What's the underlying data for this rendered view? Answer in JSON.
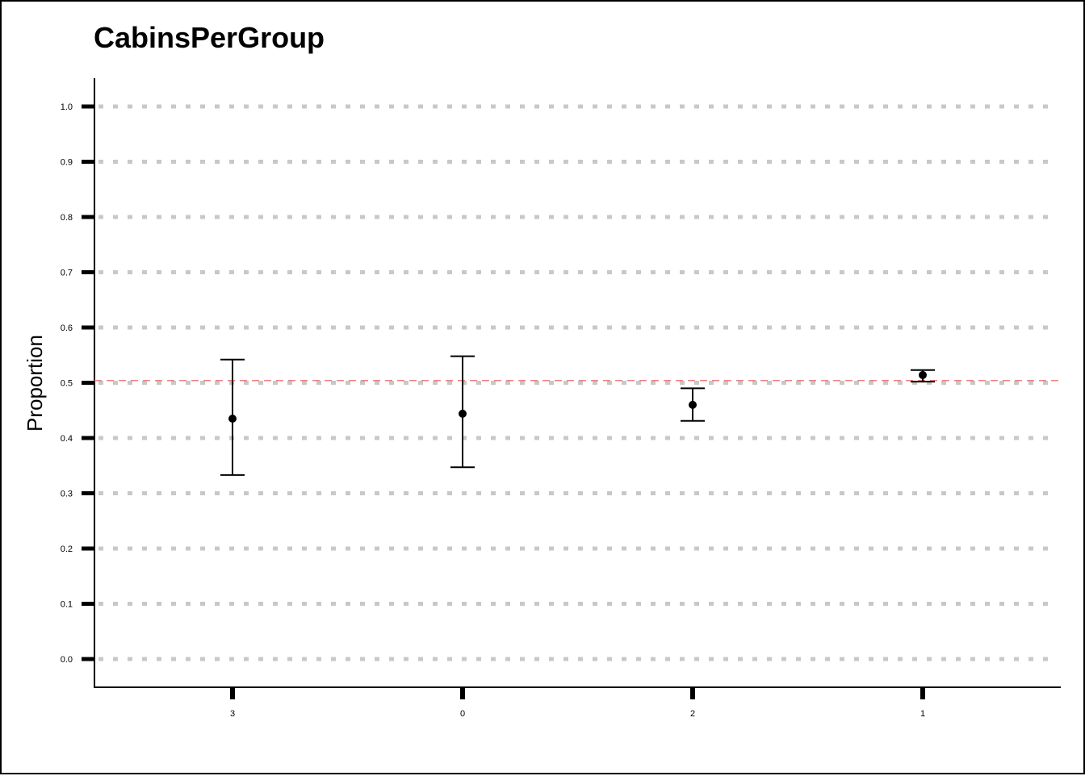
{
  "chart_data": {
    "type": "errorbar",
    "title": "CabinsPerGroup",
    "xlabel": "",
    "ylabel": "Proportion",
    "categories": [
      "3",
      "0",
      "2",
      "1"
    ],
    "values": [
      0.435,
      0.444,
      0.46,
      0.514
    ],
    "lower": [
      0.333,
      0.347,
      0.431,
      0.502
    ],
    "upper": [
      0.542,
      0.548,
      0.49,
      0.523
    ],
    "ylim": [
      -0.05,
      1.05
    ],
    "yticks": [
      "0.0",
      "0.1",
      "0.2",
      "0.3",
      "0.4",
      "0.5",
      "0.6",
      "0.7",
      "0.8",
      "0.9",
      "1.0"
    ],
    "reference_line": 0.504,
    "grid": true,
    "colors": {
      "point": "#000000",
      "grid": "#c8c8c8",
      "reference": "#f08080"
    }
  }
}
